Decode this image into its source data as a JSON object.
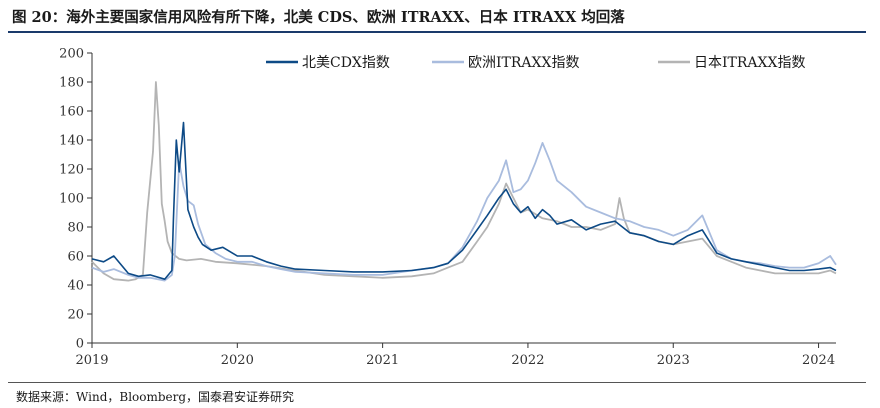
{
  "figure": {
    "title": "图 20：海外主要国家信用风险有所下降，北美 CDS、欧洲 ITRAXX、日本 ITRAXX 均回落",
    "source": "数据来源：Wind，Bloomberg，国泰君安证券研究"
  },
  "chart_data": {
    "type": "line",
    "title": "",
    "xlabel": "",
    "ylabel": "",
    "ylim": [
      0,
      200
    ],
    "yticks": [
      0,
      20,
      40,
      60,
      80,
      100,
      120,
      140,
      160,
      180,
      200
    ],
    "xlim": [
      2019.0,
      2024.12
    ],
    "xticks": [
      2019,
      2020,
      2021,
      2022,
      2023,
      2024
    ],
    "xtick_labels": [
      "2019",
      "2020",
      "2021",
      "2022",
      "2023",
      "2024"
    ],
    "grid": false,
    "legend_position": "top",
    "series": [
      {
        "name": "北美CDX指数",
        "color": "#0d4a86",
        "x": [
          2019.0,
          2019.08,
          2019.15,
          2019.25,
          2019.32,
          2019.4,
          2019.5,
          2019.55,
          2019.56,
          2019.58,
          2019.6,
          2019.63,
          2019.66,
          2019.7,
          2019.73,
          2019.76,
          2019.82,
          2019.9,
          2020.0,
          2020.1,
          2020.2,
          2020.3,
          2020.4,
          2020.6,
          2020.8,
          2021.0,
          2021.2,
          2021.35,
          2021.45,
          2021.55,
          2021.65,
          2021.72,
          2021.8,
          2021.85,
          2021.9,
          2021.95,
          2022.0,
          2022.05,
          2022.1,
          2022.15,
          2022.2,
          2022.3,
          2022.4,
          2022.5,
          2022.6,
          2022.7,
          2022.8,
          2022.9,
          2023.0,
          2023.1,
          2023.2,
          2023.3,
          2023.4,
          2023.5,
          2023.6,
          2023.7,
          2023.8,
          2023.9,
          2024.0,
          2024.08,
          2024.12
        ],
        "y": [
          58,
          56,
          60,
          48,
          46,
          47,
          44,
          50,
          85,
          140,
          118,
          152,
          92,
          80,
          73,
          68,
          64,
          66,
          60,
          60,
          56,
          53,
          51,
          50,
          49,
          49,
          50,
          52,
          55,
          64,
          78,
          88,
          100,
          106,
          96,
          90,
          94,
          86,
          92,
          88,
          82,
          85,
          78,
          82,
          84,
          76,
          74,
          70,
          68,
          74,
          78,
          62,
          58,
          56,
          54,
          52,
          50,
          50,
          51,
          52,
          50
        ]
      },
      {
        "name": "欧洲ITRAXX指数",
        "color": "#a9bcde",
        "x": [
          2019.0,
          2019.08,
          2019.15,
          2019.25,
          2019.32,
          2019.4,
          2019.5,
          2019.55,
          2019.57,
          2019.6,
          2019.63,
          2019.66,
          2019.7,
          2019.73,
          2019.78,
          2019.85,
          2019.92,
          2020.0,
          2020.1,
          2020.2,
          2020.3,
          2020.4,
          2020.6,
          2020.8,
          2021.0,
          2021.2,
          2021.35,
          2021.45,
          2021.55,
          2021.65,
          2021.72,
          2021.8,
          2021.85,
          2021.9,
          2021.95,
          2022.0,
          2022.05,
          2022.1,
          2022.15,
          2022.2,
          2022.3,
          2022.4,
          2022.5,
          2022.6,
          2022.7,
          2022.8,
          2022.9,
          2023.0,
          2023.1,
          2023.2,
          2023.3,
          2023.4,
          2023.5,
          2023.6,
          2023.7,
          2023.8,
          2023.9,
          2024.0,
          2024.08,
          2024.12
        ],
        "y": [
          52,
          49,
          51,
          47,
          45,
          45,
          43,
          47,
          60,
          125,
          108,
          98,
          95,
          82,
          68,
          62,
          58,
          56,
          56,
          53,
          51,
          49,
          48,
          47,
          47,
          50,
          52,
          55,
          66,
          84,
          100,
          112,
          126,
          104,
          106,
          112,
          124,
          138,
          126,
          112,
          104,
          94,
          90,
          86,
          84,
          80,
          78,
          74,
          78,
          88,
          64,
          58,
          56,
          55,
          53,
          52,
          52,
          55,
          60,
          54
        ]
      },
      {
        "name": "日本ITRAXX指数",
        "color": "#b4b4b4",
        "x": [
          2019.0,
          2019.08,
          2019.15,
          2019.25,
          2019.3,
          2019.35,
          2019.38,
          2019.42,
          2019.44,
          2019.46,
          2019.48,
          2019.5,
          2019.52,
          2019.55,
          2019.6,
          2019.65,
          2019.75,
          2019.85,
          2020.0,
          2020.2,
          2020.4,
          2020.6,
          2020.8,
          2021.0,
          2021.2,
          2021.35,
          2021.45,
          2021.55,
          2021.65,
          2021.72,
          2021.8,
          2021.85,
          2021.9,
          2021.95,
          2022.0,
          2022.1,
          2022.2,
          2022.3,
          2022.4,
          2022.5,
          2022.6,
          2022.63,
          2022.66,
          2022.7,
          2022.8,
          2022.9,
          2023.0,
          2023.1,
          2023.2,
          2023.3,
          2023.4,
          2023.5,
          2023.6,
          2023.7,
          2023.8,
          2023.9,
          2024.0,
          2024.08,
          2024.12
        ],
        "y": [
          56,
          48,
          44,
          43,
          44,
          47,
          90,
          132,
          180,
          150,
          96,
          84,
          70,
          62,
          58,
          57,
          58,
          56,
          55,
          53,
          50,
          47,
          46,
          45,
          46,
          48,
          52,
          56,
          70,
          80,
          96,
          110,
          100,
          90,
          92,
          86,
          84,
          80,
          80,
          78,
          82,
          100,
          86,
          76,
          74,
          70,
          68,
          70,
          72,
          60,
          56,
          52,
          50,
          48,
          48,
          48,
          48,
          50,
          48
        ]
      }
    ]
  }
}
